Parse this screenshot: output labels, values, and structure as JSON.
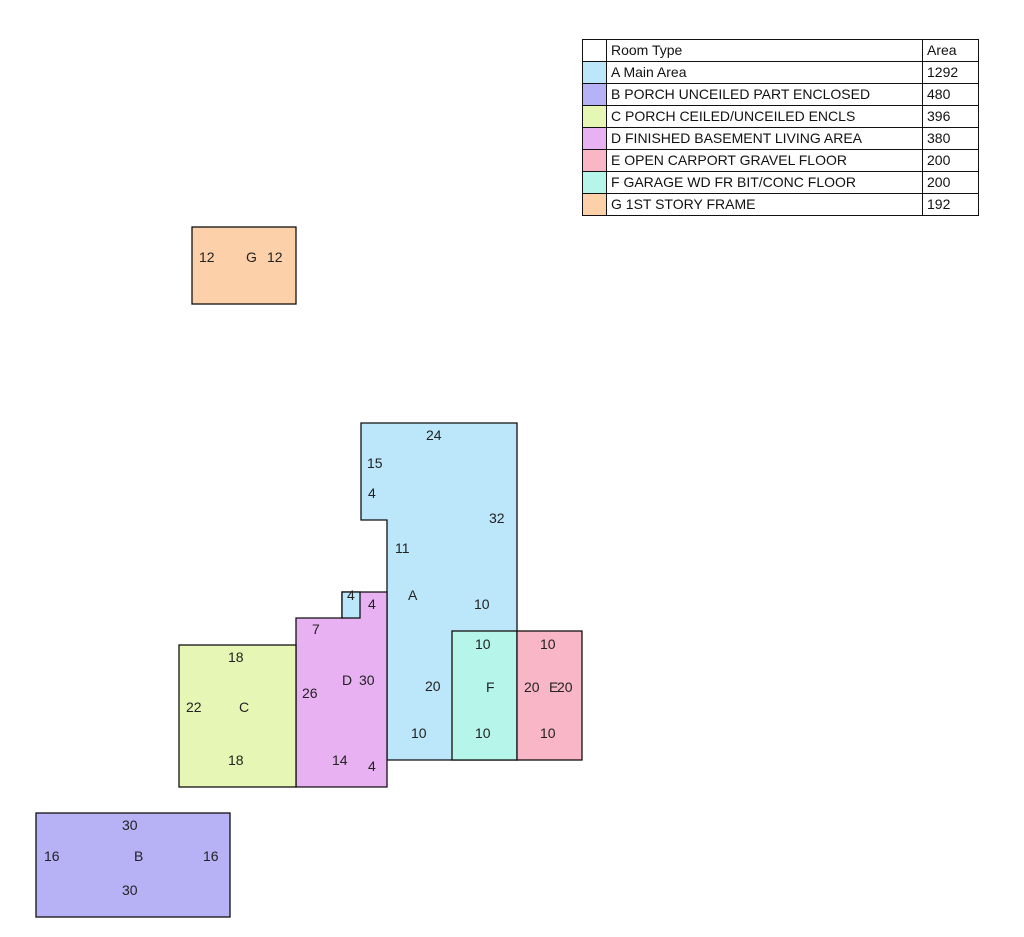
{
  "legend": {
    "header": {
      "type": "Room Type",
      "area": "Area"
    },
    "rows": [
      {
        "type": "A Main Area",
        "area": "1292",
        "color": "#bce6fa"
      },
      {
        "type": "B PORCH UNCEILED PART ENCLOSED",
        "area": "480",
        "color": "#b7b1f5"
      },
      {
        "type": "C PORCH CEILED/UNCEILED ENCLS",
        "area": "396",
        "color": "#e6f7b5"
      },
      {
        "type": "D FINISHED BASEMENT LIVING AREA",
        "area": "380",
        "color": "#e8b1f2"
      },
      {
        "type": "E OPEN CARPORT GRAVEL FLOOR",
        "area": "200",
        "color": "#f8b6c7"
      },
      {
        "type": "F GARAGE WD FR BIT/CONC FLOOR",
        "area": "200",
        "color": "#b6f5ea"
      },
      {
        "type": "G 1ST STORY FRAME",
        "area": "192",
        "color": "#fcd1aa"
      }
    ]
  },
  "rooms": {
    "A": {
      "label": "A",
      "color": "#bce6fa",
      "dims": {
        "top": "24",
        "left_top": "15",
        "notch": "4",
        "right": "32",
        "step": "11",
        "right_lower": "10",
        "bottom_mid": "20",
        "bottom": "10"
      }
    },
    "B": {
      "label": "B",
      "color": "#b7b1f5",
      "dims": {
        "top": "30",
        "left": "16",
        "right": "16",
        "bottom": "30"
      }
    },
    "C": {
      "label": "C",
      "color": "#e6f7b5",
      "dims": {
        "top": "18",
        "left": "22",
        "bottom": "18"
      }
    },
    "D": {
      "label": "D",
      "color": "#e8b1f2",
      "dims": {
        "notch_top": "4",
        "notch_side": "4",
        "top": "7",
        "left": "26",
        "right": "30",
        "bottom": "14",
        "bottom_right": "4"
      }
    },
    "E": {
      "label": "E",
      "color": "#f8b6c7",
      "dims": {
        "top": "10",
        "left": "20",
        "right": "20",
        "bottom": "10"
      }
    },
    "F": {
      "label": "F",
      "color": "#b6f5ea",
      "dims": {
        "top": "10",
        "bottom": "10"
      }
    },
    "G": {
      "label": "G",
      "color": "#fcd1aa",
      "dims": {
        "left": "12",
        "right": "12"
      }
    }
  }
}
